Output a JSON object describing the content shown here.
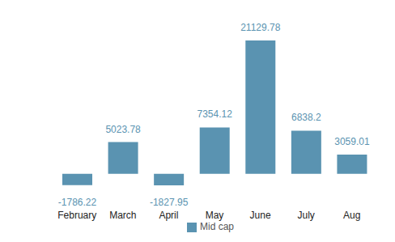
{
  "chart_data": {
    "type": "bar",
    "categories": [
      "February",
      "March",
      "April",
      "May",
      "June",
      "July",
      "Aug"
    ],
    "series": [
      {
        "name": "Mid cap",
        "color": "#5a93b1",
        "values": [
          -1786.22,
          5023.78,
          -1827.95,
          7354.12,
          21129.78,
          6838.2,
          3059.01
        ]
      }
    ],
    "data_labels": true,
    "tick_labels": "x",
    "grid": false,
    "legend": "bottom"
  }
}
